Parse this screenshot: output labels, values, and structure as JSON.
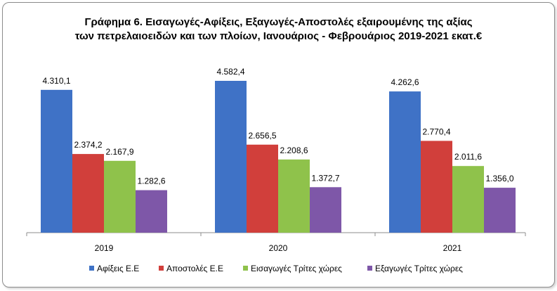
{
  "chart_data": {
    "type": "bar",
    "title_line1": "Γράφημα 6. Εισαγωγές-Αφίξεις, Εξαγωγές-Αποστολές εξαιρουμένης  της αξίας",
    "title_line2": "των πετρελαιοειδών και των πλοίων, Ιανουάριος - Φεβρουάριος 2019-2021 εκατ.€",
    "categories": [
      "2019",
      "2020",
      "2021"
    ],
    "series": [
      {
        "name": "Αφίξεις Ε.Ε",
        "color": "#3f72c6",
        "values": [
          4310.1,
          4582.4,
          4262.6
        ],
        "labels": [
          "4.310,1",
          "4.582,4",
          "4.262,6"
        ]
      },
      {
        "name": "Αποστολές  Ε.Ε",
        "color": "#d13f3b",
        "values": [
          2374.2,
          2656.5,
          2770.4
        ],
        "labels": [
          "2.374,2",
          "2.656,5",
          "2.770,4"
        ]
      },
      {
        "name": "Εισαγωγές Τρίτες χώρες",
        "color": "#8fc24b",
        "values": [
          2167.9,
          2208.6,
          2011.6
        ],
        "labels": [
          "2.167,9",
          "2.208,6",
          "2.011,6"
        ]
      },
      {
        "name": "Εξαγωγές Τρίτες χώρες",
        "color": "#7e57a8",
        "values": [
          1282.6,
          1372.7,
          1356.0
        ],
        "labels": [
          "1.282,6",
          "1.372,7",
          "1.356,0"
        ]
      }
    ],
    "ylim": [
      0,
      4582.4
    ],
    "grid": false,
    "legend_position": "bottom"
  }
}
